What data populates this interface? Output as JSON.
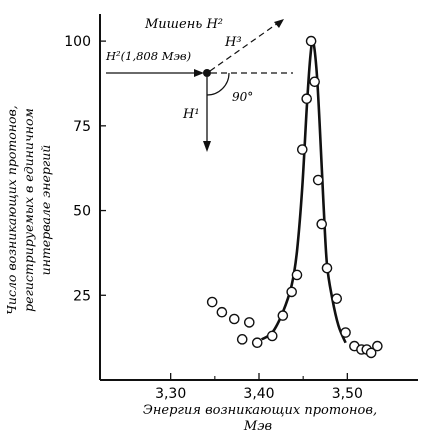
{
  "chart_data": {
    "type": "scatter",
    "title": "",
    "ylabel_lines": [
      "Число возникающих протонов,",
      "регистрируемых в единичном",
      "интервале энергий"
    ],
    "xlabel_lines": [
      "Энергия возникающих протонов,",
      "Мэв"
    ],
    "xticks": [
      3.3,
      3.4,
      3.5
    ],
    "xtick_labels": [
      "3,30",
      "3,40",
      "3,50"
    ],
    "yticks": [
      25,
      50,
      75,
      100
    ],
    "ytick_labels": [
      "25",
      "50",
      "75",
      "100"
    ],
    "xlim": [
      3.22,
      3.58
    ],
    "ylim": [
      0,
      108
    ],
    "grid": false,
    "series": [
      {
        "kind": "points",
        "x": [
          3.347,
          3.358,
          3.372,
          3.381,
          3.389,
          3.398,
          3.415,
          3.427,
          3.437,
          3.443,
          3.449,
          3.454,
          3.459,
          3.463,
          3.467,
          3.471,
          3.477,
          3.488,
          3.498,
          3.508,
          3.516,
          3.522,
          3.527,
          3.534
        ],
        "y": [
          23,
          20,
          18,
          12,
          17,
          11,
          13,
          19,
          26,
          31,
          68,
          83,
          100,
          88,
          59,
          46,
          33,
          24,
          14,
          10,
          9,
          9,
          8,
          10
        ]
      },
      {
        "kind": "fitted-curve",
        "x": [
          3.403,
          3.415,
          3.427,
          3.437,
          3.443,
          3.449,
          3.454,
          3.458,
          3.461,
          3.465,
          3.469,
          3.473,
          3.477,
          3.483,
          3.49,
          3.498
        ],
        "y": [
          12,
          14,
          20,
          28,
          38,
          57,
          80,
          95,
          100,
          92,
          74,
          52,
          34,
          24,
          16,
          11
        ]
      }
    ],
    "annotation": {
      "target_label": "Мишень H²",
      "beam_label": "H²(1,808 Мэв)",
      "outgoing_h3_label": "H³",
      "outgoing_h1_label": "H¹",
      "angle_label": "90°"
    }
  }
}
